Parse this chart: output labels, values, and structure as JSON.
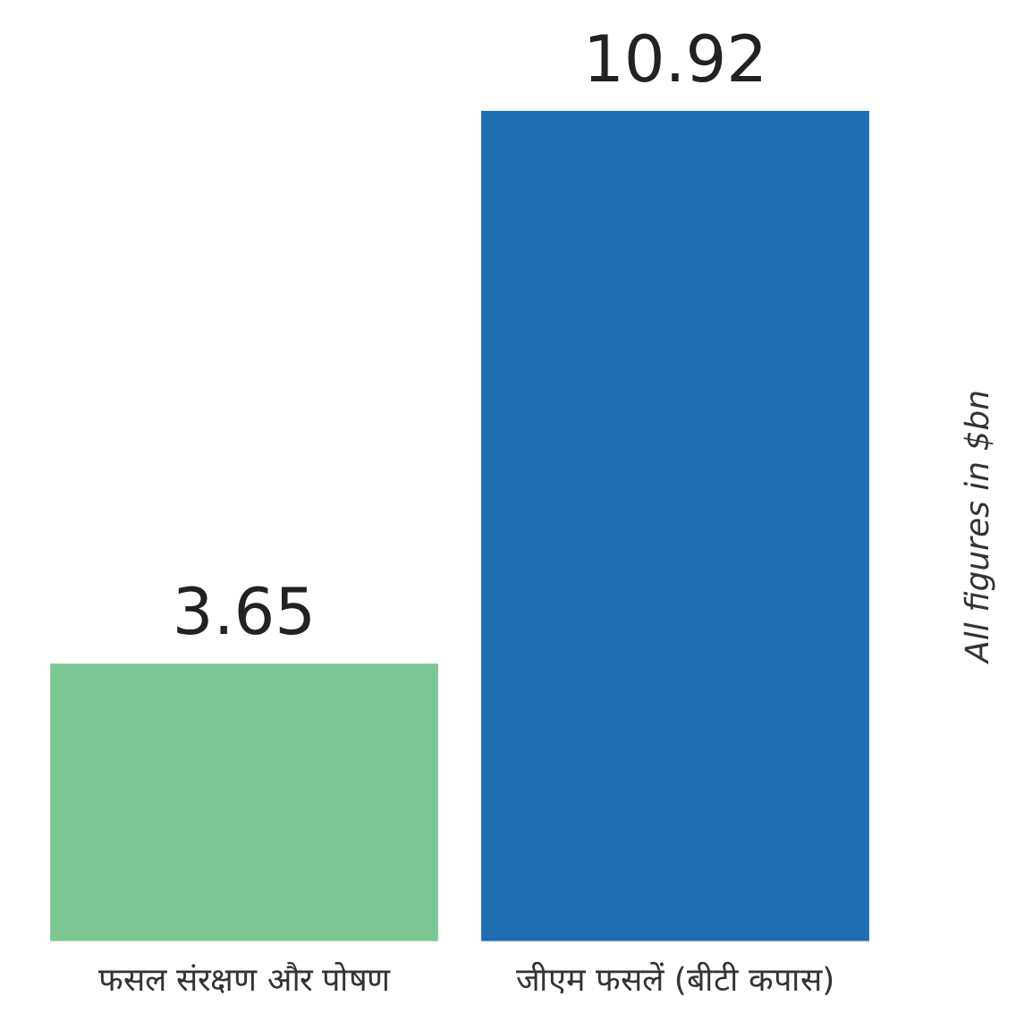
{
  "chart_data": {
    "type": "bar",
    "categories": [
      "फसल संरक्षण और पोषण",
      "जीएम फसलें (बीटी कपास)"
    ],
    "values": [
      3.65,
      10.92
    ],
    "colors": [
      "#7dc794",
      "#1f6db1"
    ],
    "relative": false,
    "data_labels": true,
    "grid": false,
    "legend": false,
    "annotations": [
      "All figures in $bn"
    ]
  }
}
